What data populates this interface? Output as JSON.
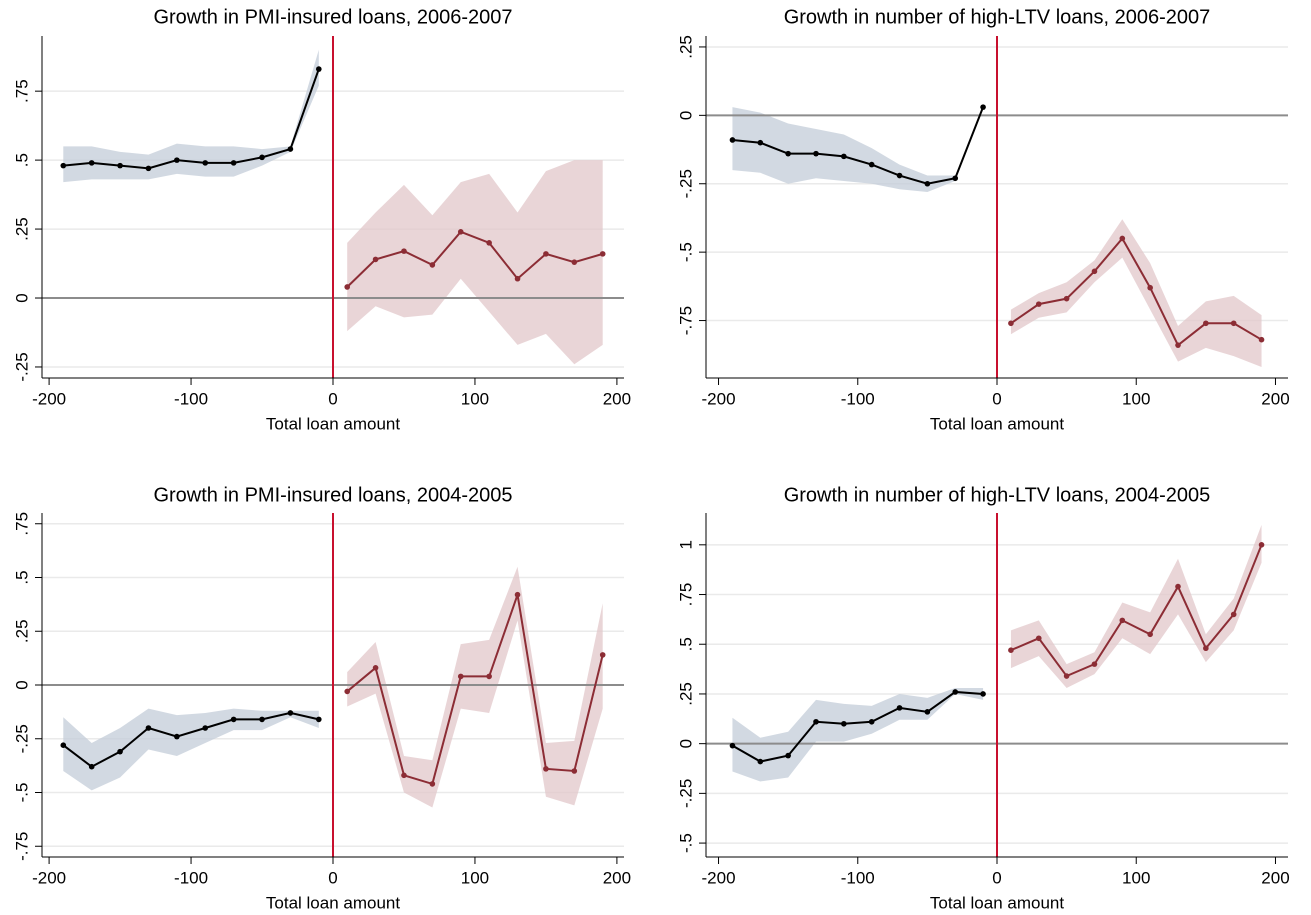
{
  "chart_data": [
    {
      "type": "line",
      "title": "Growth in PMI-insured loans, 2006-2007",
      "xlabel": "Total loan amount",
      "xlim": [
        -205,
        205
      ],
      "ylim": [
        -0.29,
        0.95
      ],
      "xticks": [
        -200,
        -100,
        0,
        100,
        200
      ],
      "yticks": [
        {
          "value": -0.25,
          "label": "-.25"
        },
        0,
        {
          "value": 0.25,
          "label": ".25"
        },
        {
          "value": 0.5,
          "label": ".5"
        },
        {
          "value": 0.75,
          "label": ".75"
        }
      ],
      "grid": true,
      "vline": 0,
      "vline_color": "#c8102e",
      "hline": 0,
      "hline_color": "#8c8c8c",
      "series": [
        {
          "color": "#000000",
          "band_color": "#c3ccd8",
          "x": [
            -190,
            -170,
            -150,
            -130,
            -110,
            -90,
            -70,
            -50,
            -30,
            -10
          ],
          "values": [
            0.48,
            0.49,
            0.48,
            0.47,
            0.5,
            0.49,
            0.49,
            0.51,
            0.54,
            0.83
          ],
          "lower": [
            0.42,
            0.43,
            0.43,
            0.43,
            0.45,
            0.44,
            0.44,
            0.48,
            0.53,
            0.77
          ],
          "upper": [
            0.55,
            0.55,
            0.53,
            0.52,
            0.56,
            0.55,
            0.55,
            0.54,
            0.55,
            0.9
          ]
        },
        {
          "color": "#8c2d35",
          "band_color": "#e2c7c9",
          "x": [
            10,
            30,
            50,
            70,
            90,
            110,
            130,
            150,
            170,
            190
          ],
          "values": [
            0.04,
            0.14,
            0.17,
            0.12,
            0.24,
            0.2,
            0.07,
            0.16,
            0.13,
            0.16
          ],
          "lower": [
            -0.12,
            -0.03,
            -0.07,
            -0.06,
            0.07,
            -0.05,
            -0.17,
            -0.13,
            -0.24,
            -0.17
          ],
          "upper": [
            0.2,
            0.31,
            0.41,
            0.3,
            0.42,
            0.45,
            0.31,
            0.46,
            0.5,
            0.5
          ]
        }
      ]
    },
    {
      "type": "line",
      "title": "Growth in number of high-LTV loans, 2006-2007",
      "xlabel": "Total loan amount",
      "xlim": [
        -209,
        209
      ],
      "ylim": [
        -0.96,
        0.29
      ],
      "xticks": [
        -200,
        -100,
        0,
        100,
        200
      ],
      "yticks": [
        {
          "value": -0.75,
          "label": "-.75"
        },
        {
          "value": -0.5,
          "label": "-.5"
        },
        {
          "value": -0.25,
          "label": "-.25"
        },
        0,
        {
          "value": 0.25,
          "label": ".25"
        }
      ],
      "grid": true,
      "vline": 0,
      "vline_color": "#c8102e",
      "hline": 0,
      "hline_color": "#8c8c8c",
      "series": [
        {
          "color": "#000000",
          "band_color": "#c3ccd8",
          "x": [
            -190,
            -170,
            -150,
            -130,
            -110,
            -90,
            -70,
            -50,
            -30,
            -10
          ],
          "values": [
            -0.09,
            -0.1,
            -0.14,
            -0.14,
            -0.15,
            -0.18,
            -0.22,
            -0.25,
            -0.23,
            0.03
          ],
          "lower": [
            -0.2,
            -0.21,
            -0.25,
            -0.23,
            -0.24,
            -0.25,
            -0.27,
            -0.28,
            -0.24,
            null
          ],
          "upper": [
            0.03,
            0.01,
            -0.03,
            -0.05,
            -0.07,
            -0.12,
            -0.18,
            -0.22,
            -0.22,
            null
          ]
        },
        {
          "color": "#8c2d35",
          "band_color": "#e2c7c9",
          "x": [
            10,
            30,
            50,
            70,
            90,
            110,
            130,
            150,
            170,
            190
          ],
          "values": [
            -0.76,
            -0.69,
            -0.67,
            -0.57,
            -0.45,
            -0.63,
            -0.84,
            -0.76,
            -0.76,
            -0.82
          ],
          "lower": [
            -0.8,
            -0.74,
            -0.72,
            -0.61,
            -0.52,
            -0.71,
            -0.9,
            -0.85,
            -0.88,
            -0.92
          ],
          "upper": [
            -0.71,
            -0.65,
            -0.61,
            -0.53,
            -0.38,
            -0.54,
            -0.77,
            -0.68,
            -0.66,
            -0.73
          ]
        }
      ]
    },
    {
      "type": "line",
      "title": "Growth in PMI-insured loans, 2004-2005",
      "xlabel": "Total loan amount",
      "xlim": [
        -205,
        205
      ],
      "ylim": [
        -0.8,
        0.8
      ],
      "xticks": [
        -200,
        -100,
        0,
        100,
        200
      ],
      "yticks": [
        {
          "value": -0.75,
          "label": "-.75"
        },
        {
          "value": -0.5,
          "label": "-.5"
        },
        {
          "value": -0.25,
          "label": "-.25"
        },
        0,
        {
          "value": 0.25,
          "label": ".25"
        },
        {
          "value": 0.5,
          "label": ".5"
        },
        {
          "value": 0.75,
          "label": ".75"
        }
      ],
      "grid": true,
      "vline": 0,
      "vline_color": "#c8102e",
      "hline": 0,
      "hline_color": "#8c8c8c",
      "series": [
        {
          "color": "#000000",
          "band_color": "#c3ccd8",
          "x": [
            -190,
            -170,
            -150,
            -130,
            -110,
            -90,
            -70,
            -50,
            -30,
            -10
          ],
          "values": [
            -0.28,
            -0.38,
            -0.31,
            -0.2,
            -0.24,
            -0.2,
            -0.16,
            -0.16,
            -0.13,
            -0.16
          ],
          "lower": [
            -0.4,
            -0.49,
            -0.43,
            -0.3,
            -0.33,
            -0.27,
            -0.21,
            -0.21,
            -0.15,
            -0.2
          ],
          "upper": [
            -0.15,
            -0.27,
            -0.2,
            -0.11,
            -0.14,
            -0.13,
            -0.11,
            -0.12,
            -0.12,
            -0.12
          ]
        },
        {
          "color": "#8c2d35",
          "band_color": "#e2c7c9",
          "x": [
            10,
            30,
            50,
            70,
            90,
            110,
            130,
            150,
            170,
            190
          ],
          "values": [
            -0.03,
            0.08,
            -0.42,
            -0.46,
            0.04,
            0.04,
            0.42,
            -0.39,
            -0.4,
            0.14
          ],
          "lower": [
            -0.1,
            -0.04,
            -0.5,
            -0.57,
            -0.11,
            -0.13,
            0.3,
            -0.52,
            -0.56,
            -0.11
          ],
          "upper": [
            0.06,
            0.2,
            -0.33,
            -0.35,
            0.19,
            0.21,
            0.55,
            -0.27,
            -0.26,
            0.38
          ]
        }
      ]
    },
    {
      "type": "line",
      "title": "Growth in number of high-LTV loans, 2004-2005",
      "xlabel": "Total loan amount",
      "xlim": [
        -209,
        209
      ],
      "ylim": [
        -0.57,
        1.16
      ],
      "xticks": [
        -200,
        -100,
        0,
        100,
        200
      ],
      "yticks": [
        {
          "value": -0.5,
          "label": "-.5"
        },
        {
          "value": -0.25,
          "label": "-.25"
        },
        0,
        {
          "value": 0.25,
          "label": ".25"
        },
        {
          "value": 0.5,
          "label": ".5"
        },
        {
          "value": 0.75,
          "label": ".75"
        },
        1
      ],
      "grid": true,
      "vline": 0,
      "vline_color": "#c8102e",
      "hline": 0,
      "hline_color": "#8c8c8c",
      "series": [
        {
          "color": "#000000",
          "band_color": "#c3ccd8",
          "x": [
            -190,
            -170,
            -150,
            -130,
            -110,
            -90,
            -70,
            -50,
            -30,
            -10
          ],
          "values": [
            -0.01,
            -0.09,
            -0.06,
            0.11,
            0.1,
            0.11,
            0.18,
            0.16,
            0.26,
            0.25
          ],
          "lower": [
            -0.14,
            -0.19,
            -0.17,
            0.01,
            0.01,
            0.05,
            0.12,
            0.12,
            0.25,
            0.22
          ],
          "upper": [
            0.13,
            0.03,
            0.06,
            0.22,
            0.2,
            0.19,
            0.25,
            0.23,
            0.28,
            0.28
          ]
        },
        {
          "color": "#8c2d35",
          "band_color": "#e2c7c9",
          "x": [
            10,
            30,
            50,
            70,
            90,
            110,
            130,
            150,
            170,
            190
          ],
          "values": [
            0.47,
            0.53,
            0.34,
            0.4,
            0.62,
            0.55,
            0.79,
            0.48,
            0.65,
            1.0
          ],
          "lower": [
            0.38,
            0.44,
            0.28,
            0.35,
            0.53,
            0.45,
            0.65,
            0.41,
            0.57,
            0.91
          ],
          "upper": [
            0.57,
            0.62,
            0.4,
            0.46,
            0.71,
            0.66,
            0.93,
            0.55,
            0.73,
            1.1
          ]
        }
      ]
    }
  ]
}
